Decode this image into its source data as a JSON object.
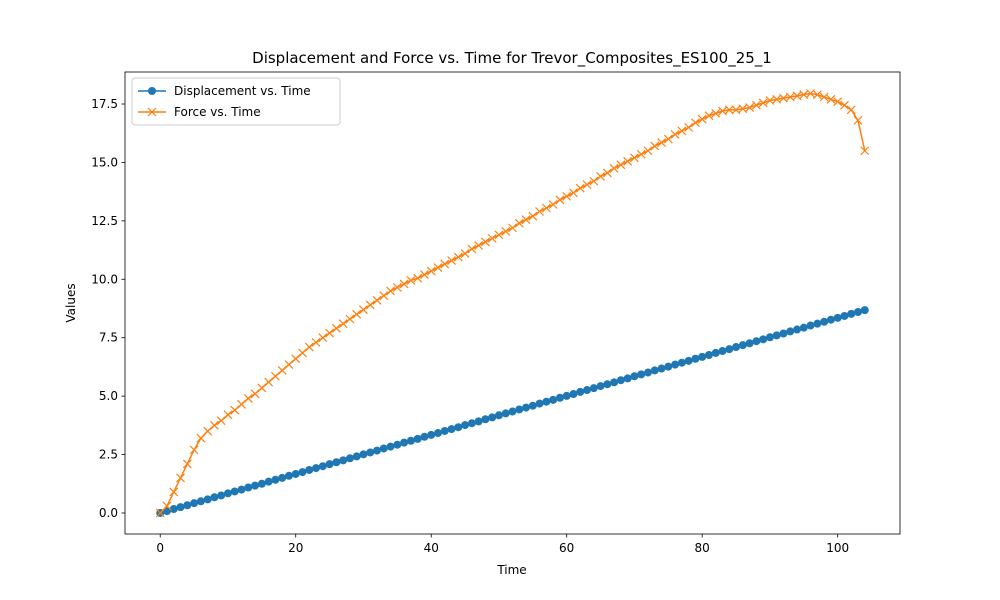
{
  "chart_data": {
    "type": "line",
    "title": "Displacement and Force vs. Time for Trevor_Composites_ES100_25_1",
    "x_label": "Time",
    "y_label": "Values",
    "x": [
      0,
      1,
      2,
      3,
      4,
      5,
      6,
      7,
      8,
      9,
      10,
      11,
      12,
      13,
      14,
      15,
      16,
      17,
      18,
      19,
      20,
      21,
      22,
      23,
      24,
      25,
      26,
      27,
      28,
      29,
      30,
      31,
      32,
      33,
      34,
      35,
      36,
      37,
      38,
      39,
      40,
      41,
      42,
      43,
      44,
      45,
      46,
      47,
      48,
      49,
      50,
      51,
      52,
      53,
      54,
      55,
      56,
      57,
      58,
      59,
      60,
      61,
      62,
      63,
      64,
      65,
      66,
      67,
      68,
      69,
      70,
      71,
      72,
      73,
      74,
      75,
      76,
      77,
      78,
      79,
      80,
      81,
      82,
      83,
      84,
      85,
      86,
      87,
      88,
      89,
      90,
      91,
      92,
      93,
      94,
      95,
      96,
      97,
      98,
      99,
      100,
      101,
      102,
      103,
      104
    ],
    "series": [
      {
        "name": "Displacement vs. Time",
        "color": "#1f77b4",
        "marker": "circle",
        "values": [
          0,
          0.08,
          0.17,
          0.25,
          0.33,
          0.42,
          0.5,
          0.58,
          0.67,
          0.75,
          0.84,
          0.92,
          1.0,
          1.09,
          1.17,
          1.25,
          1.34,
          1.42,
          1.5,
          1.59,
          1.67,
          1.75,
          1.84,
          1.92,
          2.0,
          2.09,
          2.17,
          2.25,
          2.34,
          2.42,
          2.51,
          2.59,
          2.67,
          2.76,
          2.84,
          2.92,
          3.01,
          3.09,
          3.17,
          3.26,
          3.34,
          3.42,
          3.51,
          3.59,
          3.67,
          3.76,
          3.84,
          3.92,
          4.01,
          4.09,
          4.18,
          4.26,
          4.34,
          4.43,
          4.51,
          4.59,
          4.68,
          4.76,
          4.84,
          4.93,
          5.01,
          5.09,
          5.18,
          5.26,
          5.34,
          5.43,
          5.51,
          5.59,
          5.68,
          5.76,
          5.85,
          5.93,
          6.01,
          6.1,
          6.18,
          6.26,
          6.35,
          6.43,
          6.51,
          6.6,
          6.68,
          6.76,
          6.85,
          6.93,
          7.01,
          7.1,
          7.18,
          7.26,
          7.35,
          7.43,
          7.52,
          7.6,
          7.68,
          7.77,
          7.85,
          7.93,
          8.02,
          8.1,
          8.18,
          8.27,
          8.35,
          8.43,
          8.52,
          8.6,
          8.68
        ]
      },
      {
        "name": "Force vs. Time",
        "color": "#ff7f0e",
        "marker": "x",
        "values": [
          0,
          0.3,
          0.9,
          1.5,
          2.1,
          2.7,
          3.2,
          3.5,
          3.75,
          3.95,
          4.2,
          4.4,
          4.65,
          4.9,
          5.1,
          5.35,
          5.6,
          5.85,
          6.1,
          6.35,
          6.6,
          6.85,
          7.1,
          7.3,
          7.5,
          7.7,
          7.9,
          8.1,
          8.3,
          8.5,
          8.7,
          8.9,
          9.1,
          9.3,
          9.5,
          9.65,
          9.8,
          9.95,
          10.05,
          10.2,
          10.35,
          10.5,
          10.65,
          10.8,
          10.95,
          11.1,
          11.3,
          11.45,
          11.6,
          11.75,
          11.9,
          12.05,
          12.2,
          12.4,
          12.55,
          12.7,
          12.9,
          13.05,
          13.2,
          13.4,
          13.55,
          13.7,
          13.9,
          14.05,
          14.2,
          14.4,
          14.55,
          14.75,
          14.9,
          15.05,
          15.2,
          15.35,
          15.5,
          15.7,
          15.85,
          16.0,
          16.2,
          16.35,
          16.5,
          16.7,
          16.85,
          17.0,
          17.1,
          17.2,
          17.25,
          17.25,
          17.3,
          17.35,
          17.45,
          17.55,
          17.65,
          17.7,
          17.75,
          17.8,
          17.85,
          17.9,
          17.95,
          17.9,
          17.8,
          17.7,
          17.6,
          17.45,
          17.25,
          16.8,
          15.5
        ]
      }
    ],
    "xlim": [
      -5.2,
      109.2
    ],
    "ylim": [
      -0.9,
      18.87
    ],
    "xticks": [
      0,
      20,
      40,
      60,
      80,
      100
    ],
    "yticks": [
      {
        "value": 0,
        "label": "0.0"
      },
      2.5,
      {
        "value": 5,
        "label": "5.0"
      },
      7.5,
      {
        "value": 10,
        "label": "10.0"
      },
      12.5,
      {
        "value": 15,
        "label": "15.0"
      },
      17.5
    ],
    "grid": false,
    "legend": "upper left"
  }
}
